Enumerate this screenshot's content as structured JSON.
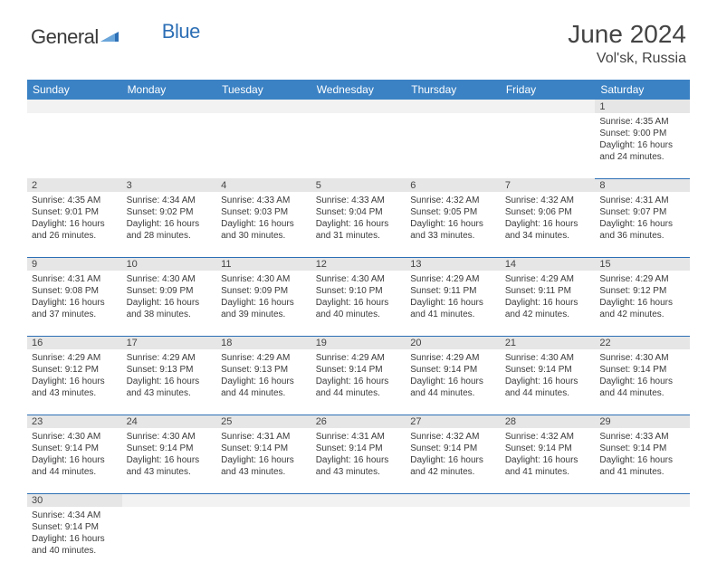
{
  "brand": {
    "part1": "General",
    "part2": "Blue"
  },
  "title": "June 2024",
  "location": "Vol'sk, Russia",
  "colors": {
    "header_bg": "#3b82c4",
    "header_text": "#ffffff",
    "daynum_bg": "#e6e6e6",
    "row_border": "#2d6fb5",
    "text": "#3a3a3a",
    "logo_blue": "#2d6fb5",
    "logo_gray": "#3a3a3a",
    "spacer_bg": "#f2f2f2"
  },
  "day_headers": [
    "Sunday",
    "Monday",
    "Tuesday",
    "Wednesday",
    "Thursday",
    "Friday",
    "Saturday"
  ],
  "weeks": [
    [
      null,
      null,
      null,
      null,
      null,
      null,
      {
        "n": "1",
        "sr": "Sunrise: 4:35 AM",
        "ss": "Sunset: 9:00 PM",
        "d1": "Daylight: 16 hours",
        "d2": "and 24 minutes."
      }
    ],
    [
      {
        "n": "2",
        "sr": "Sunrise: 4:35 AM",
        "ss": "Sunset: 9:01 PM",
        "d1": "Daylight: 16 hours",
        "d2": "and 26 minutes."
      },
      {
        "n": "3",
        "sr": "Sunrise: 4:34 AM",
        "ss": "Sunset: 9:02 PM",
        "d1": "Daylight: 16 hours",
        "d2": "and 28 minutes."
      },
      {
        "n": "4",
        "sr": "Sunrise: 4:33 AM",
        "ss": "Sunset: 9:03 PM",
        "d1": "Daylight: 16 hours",
        "d2": "and 30 minutes."
      },
      {
        "n": "5",
        "sr": "Sunrise: 4:33 AM",
        "ss": "Sunset: 9:04 PM",
        "d1": "Daylight: 16 hours",
        "d2": "and 31 minutes."
      },
      {
        "n": "6",
        "sr": "Sunrise: 4:32 AM",
        "ss": "Sunset: 9:05 PM",
        "d1": "Daylight: 16 hours",
        "d2": "and 33 minutes."
      },
      {
        "n": "7",
        "sr": "Sunrise: 4:32 AM",
        "ss": "Sunset: 9:06 PM",
        "d1": "Daylight: 16 hours",
        "d2": "and 34 minutes."
      },
      {
        "n": "8",
        "sr": "Sunrise: 4:31 AM",
        "ss": "Sunset: 9:07 PM",
        "d1": "Daylight: 16 hours",
        "d2": "and 36 minutes."
      }
    ],
    [
      {
        "n": "9",
        "sr": "Sunrise: 4:31 AM",
        "ss": "Sunset: 9:08 PM",
        "d1": "Daylight: 16 hours",
        "d2": "and 37 minutes."
      },
      {
        "n": "10",
        "sr": "Sunrise: 4:30 AM",
        "ss": "Sunset: 9:09 PM",
        "d1": "Daylight: 16 hours",
        "d2": "and 38 minutes."
      },
      {
        "n": "11",
        "sr": "Sunrise: 4:30 AM",
        "ss": "Sunset: 9:09 PM",
        "d1": "Daylight: 16 hours",
        "d2": "and 39 minutes."
      },
      {
        "n": "12",
        "sr": "Sunrise: 4:30 AM",
        "ss": "Sunset: 9:10 PM",
        "d1": "Daylight: 16 hours",
        "d2": "and 40 minutes."
      },
      {
        "n": "13",
        "sr": "Sunrise: 4:29 AM",
        "ss": "Sunset: 9:11 PM",
        "d1": "Daylight: 16 hours",
        "d2": "and 41 minutes."
      },
      {
        "n": "14",
        "sr": "Sunrise: 4:29 AM",
        "ss": "Sunset: 9:11 PM",
        "d1": "Daylight: 16 hours",
        "d2": "and 42 minutes."
      },
      {
        "n": "15",
        "sr": "Sunrise: 4:29 AM",
        "ss": "Sunset: 9:12 PM",
        "d1": "Daylight: 16 hours",
        "d2": "and 42 minutes."
      }
    ],
    [
      {
        "n": "16",
        "sr": "Sunrise: 4:29 AM",
        "ss": "Sunset: 9:12 PM",
        "d1": "Daylight: 16 hours",
        "d2": "and 43 minutes."
      },
      {
        "n": "17",
        "sr": "Sunrise: 4:29 AM",
        "ss": "Sunset: 9:13 PM",
        "d1": "Daylight: 16 hours",
        "d2": "and 43 minutes."
      },
      {
        "n": "18",
        "sr": "Sunrise: 4:29 AM",
        "ss": "Sunset: 9:13 PM",
        "d1": "Daylight: 16 hours",
        "d2": "and 44 minutes."
      },
      {
        "n": "19",
        "sr": "Sunrise: 4:29 AM",
        "ss": "Sunset: 9:14 PM",
        "d1": "Daylight: 16 hours",
        "d2": "and 44 minutes."
      },
      {
        "n": "20",
        "sr": "Sunrise: 4:29 AM",
        "ss": "Sunset: 9:14 PM",
        "d1": "Daylight: 16 hours",
        "d2": "and 44 minutes."
      },
      {
        "n": "21",
        "sr": "Sunrise: 4:30 AM",
        "ss": "Sunset: 9:14 PM",
        "d1": "Daylight: 16 hours",
        "d2": "and 44 minutes."
      },
      {
        "n": "22",
        "sr": "Sunrise: 4:30 AM",
        "ss": "Sunset: 9:14 PM",
        "d1": "Daylight: 16 hours",
        "d2": "and 44 minutes."
      }
    ],
    [
      {
        "n": "23",
        "sr": "Sunrise: 4:30 AM",
        "ss": "Sunset: 9:14 PM",
        "d1": "Daylight: 16 hours",
        "d2": "and 44 minutes."
      },
      {
        "n": "24",
        "sr": "Sunrise: 4:30 AM",
        "ss": "Sunset: 9:14 PM",
        "d1": "Daylight: 16 hours",
        "d2": "and 43 minutes."
      },
      {
        "n": "25",
        "sr": "Sunrise: 4:31 AM",
        "ss": "Sunset: 9:14 PM",
        "d1": "Daylight: 16 hours",
        "d2": "and 43 minutes."
      },
      {
        "n": "26",
        "sr": "Sunrise: 4:31 AM",
        "ss": "Sunset: 9:14 PM",
        "d1": "Daylight: 16 hours",
        "d2": "and 43 minutes."
      },
      {
        "n": "27",
        "sr": "Sunrise: 4:32 AM",
        "ss": "Sunset: 9:14 PM",
        "d1": "Daylight: 16 hours",
        "d2": "and 42 minutes."
      },
      {
        "n": "28",
        "sr": "Sunrise: 4:32 AM",
        "ss": "Sunset: 9:14 PM",
        "d1": "Daylight: 16 hours",
        "d2": "and 41 minutes."
      },
      {
        "n": "29",
        "sr": "Sunrise: 4:33 AM",
        "ss": "Sunset: 9:14 PM",
        "d1": "Daylight: 16 hours",
        "d2": "and 41 minutes."
      }
    ],
    [
      {
        "n": "30",
        "sr": "Sunrise: 4:34 AM",
        "ss": "Sunset: 9:14 PM",
        "d1": "Daylight: 16 hours",
        "d2": "and 40 minutes."
      },
      null,
      null,
      null,
      null,
      null,
      null
    ]
  ]
}
